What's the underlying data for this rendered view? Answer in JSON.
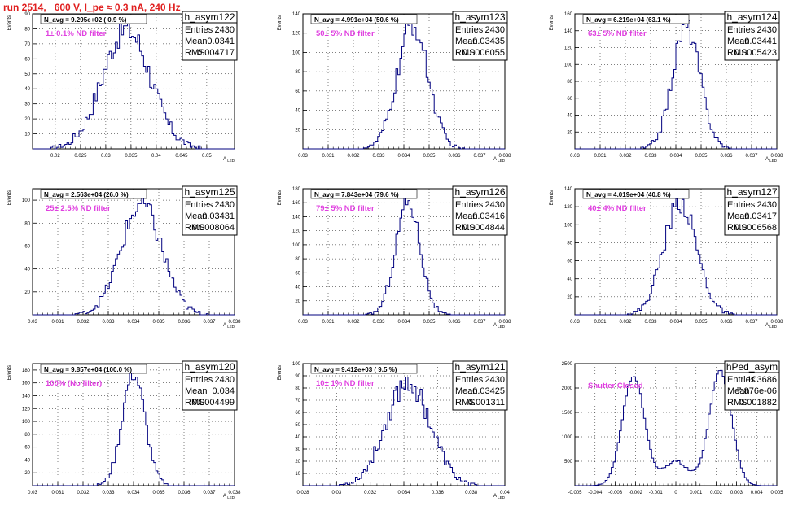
{
  "title": "run 2514,   600 V, I_pe ≈ 0.3 nA, 240 Hz",
  "colors": {
    "title": "#e02020",
    "histogram": "#00007f",
    "annotation": "#e040e0",
    "grid": "#000000"
  },
  "chart_data": [
    {
      "type": "bar",
      "name": "h_asym122",
      "ylabel": "Events",
      "xlabel": "A_LED",
      "xlim": [
        0.0155,
        0.0555
      ],
      "ylim": [
        0,
        90
      ],
      "xticks": [
        "0.02",
        "0.025",
        "0.03",
        "0.035",
        "0.04",
        "0.045",
        "0.05"
      ],
      "xtick_values": [
        0.02,
        0.025,
        0.03,
        0.035,
        0.04,
        0.045,
        0.05
      ],
      "yticks": [
        "10",
        "20",
        "30",
        "40",
        "50",
        "60",
        "70",
        "80",
        "90"
      ],
      "ytick_values": [
        10,
        20,
        30,
        40,
        50,
        60,
        70,
        80,
        90
      ],
      "stats": {
        "entries": "2430",
        "mean": "0.0341",
        "rms": "0.004717"
      },
      "n_avg": "N_avg = 9.295e+02 ( 0.9 %)",
      "annotation": "1± 0.1% ND filter",
      "gaussian": {
        "mean": 0.0341,
        "sigma": 0.004717,
        "peak": 80
      }
    },
    {
      "type": "bar",
      "name": "h_asym123",
      "ylabel": "Events",
      "xlabel": "A_LED",
      "xlim": [
        0.03,
        0.038
      ],
      "ylim": [
        0,
        140
      ],
      "xticks": [
        "0.03",
        "0.031",
        "0.032",
        "0.033",
        "0.034",
        "0.035",
        "0.036",
        "0.037",
        "0.038"
      ],
      "xtick_values": [
        0.03,
        0.031,
        0.032,
        0.033,
        0.034,
        0.035,
        0.036,
        0.037,
        0.038
      ],
      "yticks": [
        "20",
        "40",
        "60",
        "80",
        "100",
        "120",
        "140"
      ],
      "ytick_values": [
        20,
        40,
        60,
        80,
        100,
        120,
        140
      ],
      "stats": {
        "entries": "2430",
        "mean": "0.03435",
        "rms": "0.0006055"
      },
      "n_avg": "N_avg = 4.991e+04 (50.6 %)",
      "annotation": "50± 5% ND filter",
      "gaussian": {
        "mean": 0.03435,
        "sigma": 0.0006055,
        "peak": 128
      }
    },
    {
      "type": "bar",
      "name": "h_asym124",
      "ylabel": "Events",
      "xlabel": "A_LED",
      "xlim": [
        0.03,
        0.038
      ],
      "ylim": [
        0,
        160
      ],
      "xticks": [
        "0.03",
        "0.031",
        "0.032",
        "0.033",
        "0.034",
        "0.035",
        "0.036",
        "0.037",
        "0.038"
      ],
      "xtick_values": [
        0.03,
        0.031,
        0.032,
        0.033,
        0.034,
        0.035,
        0.036,
        0.037,
        0.038
      ],
      "yticks": [
        "20",
        "40",
        "60",
        "80",
        "100",
        "120",
        "140",
        "160"
      ],
      "ytick_values": [
        20,
        40,
        60,
        80,
        100,
        120,
        140,
        160
      ],
      "stats": {
        "entries": "2430",
        "mean": "0.03441",
        "rms": "0.0005423"
      },
      "n_avg": "N_avg = 6.219e+04 (63.1 %)",
      "annotation": "63± 5% ND filter",
      "gaussian": {
        "mean": 0.03441,
        "sigma": 0.0005423,
        "peak": 145
      }
    },
    {
      "type": "bar",
      "name": "h_asym125",
      "ylabel": "Events",
      "xlabel": "A_LED",
      "xlim": [
        0.03,
        0.038
      ],
      "ylim": [
        0,
        110
      ],
      "xticks": [
        "0.03",
        "0.031",
        "0.032",
        "0.033",
        "0.034",
        "0.035",
        "0.036",
        "0.037",
        "0.038"
      ],
      "xtick_values": [
        0.03,
        0.031,
        0.032,
        0.033,
        0.034,
        0.035,
        0.036,
        0.037,
        0.038
      ],
      "yticks": [
        "20",
        "40",
        "60",
        "80",
        "100"
      ],
      "ytick_values": [
        20,
        40,
        60,
        80,
        100
      ],
      "stats": {
        "entries": "2430",
        "mean": "0.03431",
        "rms": "0.0008064"
      },
      "n_avg": "N_avg = 2.563e+04 (26.0 %)",
      "annotation": "25± 2.5% ND filter",
      "gaussian": {
        "mean": 0.03431,
        "sigma": 0.0008064,
        "peak": 96
      }
    },
    {
      "type": "bar",
      "name": "h_asym126",
      "ylabel": "Events",
      "xlabel": "A_LED",
      "xlim": [
        0.03,
        0.038
      ],
      "ylim": [
        0,
        180
      ],
      "xticks": [
        "0.03",
        "0.031",
        "0.032",
        "0.033",
        "0.034",
        "0.035",
        "0.036",
        "0.037",
        "0.038"
      ],
      "xtick_values": [
        0.03,
        0.031,
        0.032,
        0.033,
        0.034,
        0.035,
        0.036,
        0.037,
        0.038
      ],
      "yticks": [
        "20",
        "40",
        "60",
        "80",
        "100",
        "120",
        "140",
        "160",
        "180"
      ],
      "ytick_values": [
        20,
        40,
        60,
        80,
        100,
        120,
        140,
        160,
        180
      ],
      "stats": {
        "entries": "2430",
        "mean": "0.03416",
        "rms": "0.0004844"
      },
      "n_avg": "N_avg = 7.843e+04 (79.6 %)",
      "annotation": "79± 5% ND filter",
      "gaussian": {
        "mean": 0.03416,
        "sigma": 0.0004844,
        "peak": 162
      }
    },
    {
      "type": "bar",
      "name": "h_asym127",
      "ylabel": "Events",
      "xlabel": "A_LED",
      "xlim": [
        0.03,
        0.038
      ],
      "ylim": [
        0,
        140
      ],
      "xticks": [
        "0.03",
        "0.031",
        "0.032",
        "0.033",
        "0.034",
        "0.035",
        "0.036",
        "0.037",
        "0.038"
      ],
      "xtick_values": [
        0.03,
        0.031,
        0.032,
        0.033,
        0.034,
        0.035,
        0.036,
        0.037,
        0.038
      ],
      "yticks": [
        "20",
        "40",
        "60",
        "80",
        "100",
        "120",
        "140"
      ],
      "ytick_values": [
        20,
        40,
        60,
        80,
        100,
        120,
        140
      ],
      "stats": {
        "entries": "2430",
        "mean": "0.03417",
        "rms": "0.0006568"
      },
      "n_avg": "N_avg = 4.019e+04 (40.8 %)",
      "annotation": "40± 4% ND filter",
      "gaussian": {
        "mean": 0.03417,
        "sigma": 0.0006568,
        "peak": 125
      }
    },
    {
      "type": "bar",
      "name": "h_asym120",
      "ylabel": "Events",
      "xlabel": "A_LED",
      "xlim": [
        0.03,
        0.038
      ],
      "ylim": [
        0,
        190
      ],
      "xticks": [
        "0.03",
        "0.031",
        "0.032",
        "0.033",
        "0.034",
        "0.035",
        "0.036",
        "0.037",
        "0.038"
      ],
      "xtick_values": [
        0.03,
        0.031,
        0.032,
        0.033,
        0.034,
        0.035,
        0.036,
        0.037,
        0.038
      ],
      "yticks": [
        "20",
        "40",
        "60",
        "80",
        "100",
        "120",
        "140",
        "160",
        "180"
      ],
      "ytick_values": [
        20,
        40,
        60,
        80,
        100,
        120,
        140,
        160,
        180
      ],
      "stats": {
        "entries": "2430",
        "mean": "0.034",
        "rms": "0.0004499"
      },
      "n_avg": "N_avg = 9.857e+04 (100.0 %)",
      "annotation": "100% (No filter)",
      "gaussian": {
        "mean": 0.034,
        "sigma": 0.0004499,
        "peak": 175
      }
    },
    {
      "type": "bar",
      "name": "h_asym121",
      "ylabel": "Events",
      "xlabel": "A_LED",
      "xlim": [
        0.028,
        0.04
      ],
      "ylim": [
        0,
        100
      ],
      "xticks": [
        "0.028",
        "0.03",
        "0.032",
        "0.034",
        "0.036",
        "0.038",
        "0.04"
      ],
      "xtick_values": [
        0.028,
        0.03,
        0.032,
        0.034,
        0.036,
        0.038,
        0.04
      ],
      "yticks": [
        "10",
        "20",
        "30",
        "40",
        "50",
        "60",
        "70",
        "80",
        "90",
        "100"
      ],
      "ytick_values": [
        10,
        20,
        30,
        40,
        50,
        60,
        70,
        80,
        90,
        100
      ],
      "stats": {
        "entries": "2430",
        "mean": "0.03425",
        "rms": "0.001311"
      },
      "n_avg": "N_avg = 9.412e+03 ( 9.5 %)",
      "annotation": "10± 1% ND filter",
      "gaussian": {
        "mean": 0.03425,
        "sigma": 0.001311,
        "peak": 85
      }
    },
    {
      "type": "bar",
      "name": "hPed_asym",
      "ylabel": "",
      "xlabel": "",
      "xlim": [
        -0.005,
        0.005
      ],
      "ylim": [
        0,
        2500
      ],
      "xticks": [
        "-0.005",
        "-0.004",
        "-0.003",
        "-0.002",
        "-0.001",
        "0",
        "0.001",
        "0.002",
        "0.003",
        "0.004",
        "0.005"
      ],
      "xtick_values": [
        -0.005,
        -0.004,
        -0.003,
        -0.002,
        -0.001,
        0,
        0.001,
        0.002,
        0.003,
        0.004,
        0.005
      ],
      "yticks": [
        "500",
        "1000",
        "1500",
        "2000",
        "2500"
      ],
      "ytick_values": [
        500,
        1000,
        1500,
        2000,
        2500
      ],
      "stats": {
        "entries": "103686",
        "mean": "7.876e-06",
        "rms": "0.001882"
      },
      "n_avg": "",
      "annotation": "Shutter Closed",
      "bimodal": [
        {
          "mean": -0.0021,
          "sigma": 0.00055,
          "peak": 2250
        },
        {
          "mean": 0.0022,
          "sigma": 0.00055,
          "peak": 2350
        }
      ],
      "dip_level": 500
    }
  ],
  "stat_labels": {
    "entries": "Entries",
    "mean": "Mean",
    "rms": "RMS"
  }
}
